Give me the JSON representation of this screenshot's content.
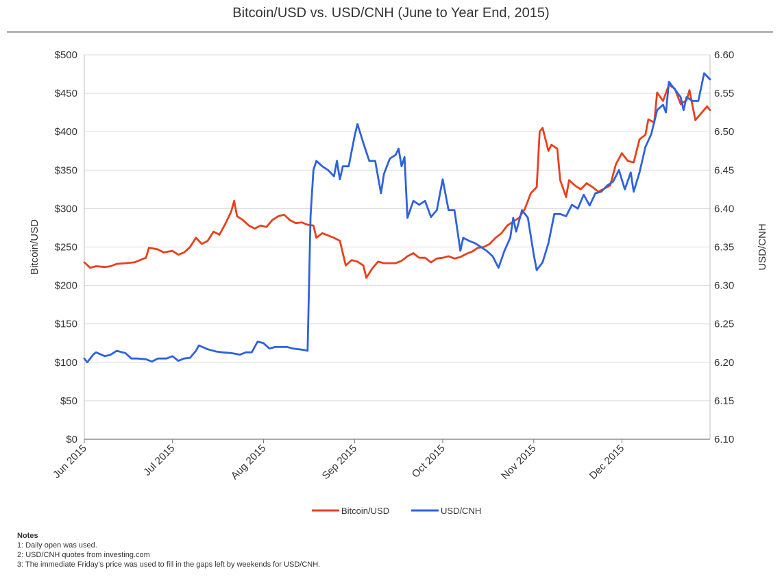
{
  "chart_data": {
    "type": "line",
    "title": "Bitcoin/USD vs. USD/CNH (June to Year End, 2015)",
    "ylabel_left": "Bitcoin/USD",
    "ylabel_right": "USD/CNH",
    "x_start": "2015-06-01",
    "x_end": "2015-12-31",
    "xticks": [
      {
        "date": "2015-06-01",
        "label": "Jun 2015"
      },
      {
        "date": "2015-07-01",
        "label": "Jul 2015"
      },
      {
        "date": "2015-08-01",
        "label": "Aug 2015"
      },
      {
        "date": "2015-09-01",
        "label": "Sep 2015"
      },
      {
        "date": "2015-10-01",
        "label": "Oct 2015"
      },
      {
        "date": "2015-11-01",
        "label": "Nov 2015"
      },
      {
        "date": "2015-12-01",
        "label": "Dec 2015"
      }
    ],
    "ylim_left": [
      0,
      500
    ],
    "yticks_left": [
      {
        "value": 0,
        "label": "$0"
      },
      {
        "value": 50,
        "label": "$50"
      },
      {
        "value": 100,
        "label": "$100"
      },
      {
        "value": 150,
        "label": "$150"
      },
      {
        "value": 200,
        "label": "$200"
      },
      {
        "value": 250,
        "label": "$250"
      },
      {
        "value": 300,
        "label": "$300"
      },
      {
        "value": 350,
        "label": "$350"
      },
      {
        "value": 400,
        "label": "$400"
      },
      {
        "value": 450,
        "label": "$450"
      },
      {
        "value": 500,
        "label": "$500"
      }
    ],
    "ylim_right": [
      6.1,
      6.6
    ],
    "yticks_right": [
      {
        "value": 6.1,
        "label": "6.10"
      },
      {
        "value": 6.15,
        "label": "6.15"
      },
      {
        "value": 6.2,
        "label": "6.20"
      },
      {
        "value": 6.25,
        "label": "6.25"
      },
      {
        "value": 6.3,
        "label": "6.30"
      },
      {
        "value": 6.35,
        "label": "6.35"
      },
      {
        "value": 6.4,
        "label": "6.40"
      },
      {
        "value": 6.45,
        "label": "6.45"
      },
      {
        "value": 6.5,
        "label": "6.50"
      },
      {
        "value": 6.55,
        "label": "6.55"
      },
      {
        "value": 6.6,
        "label": "6.60"
      }
    ],
    "grid": true,
    "legend_position": "bottom-center",
    "series": [
      {
        "name": "Bitcoin/USD",
        "axis": "left",
        "color": "#e8401c",
        "points": [
          [
            "2015-06-01",
            230
          ],
          [
            "2015-06-03",
            223
          ],
          [
            "2015-06-05",
            225
          ],
          [
            "2015-06-08",
            224
          ],
          [
            "2015-06-10",
            225
          ],
          [
            "2015-06-12",
            228
          ],
          [
            "2015-06-15",
            229
          ],
          [
            "2015-06-18",
            230
          ],
          [
            "2015-06-20",
            233
          ],
          [
            "2015-06-22",
            236
          ],
          [
            "2015-06-23",
            249
          ],
          [
            "2015-06-26",
            247
          ],
          [
            "2015-06-28",
            243
          ],
          [
            "2015-07-01",
            245
          ],
          [
            "2015-07-03",
            240
          ],
          [
            "2015-07-05",
            243
          ],
          [
            "2015-07-07",
            250
          ],
          [
            "2015-07-09",
            262
          ],
          [
            "2015-07-11",
            254
          ],
          [
            "2015-07-13",
            258
          ],
          [
            "2015-07-15",
            270
          ],
          [
            "2015-07-17",
            266
          ],
          [
            "2015-07-19",
            280
          ],
          [
            "2015-07-21",
            296
          ],
          [
            "2015-07-22",
            310
          ],
          [
            "2015-07-23",
            290
          ],
          [
            "2015-07-25",
            285
          ],
          [
            "2015-07-27",
            278
          ],
          [
            "2015-07-29",
            274
          ],
          [
            "2015-07-31",
            278
          ],
          [
            "2015-08-02",
            276
          ],
          [
            "2015-08-04",
            285
          ],
          [
            "2015-08-06",
            290
          ],
          [
            "2015-08-08",
            292
          ],
          [
            "2015-08-10",
            285
          ],
          [
            "2015-08-12",
            281
          ],
          [
            "2015-08-14",
            282
          ],
          [
            "2015-08-16",
            279
          ],
          [
            "2015-08-18",
            278
          ],
          [
            "2015-08-19",
            262
          ],
          [
            "2015-08-21",
            268
          ],
          [
            "2015-08-23",
            265
          ],
          [
            "2015-08-25",
            262
          ],
          [
            "2015-08-27",
            258
          ],
          [
            "2015-08-29",
            226
          ],
          [
            "2015-08-31",
            233
          ],
          [
            "2015-09-02",
            231
          ],
          [
            "2015-09-04",
            226
          ],
          [
            "2015-09-05",
            210
          ],
          [
            "2015-09-07",
            222
          ],
          [
            "2015-09-09",
            231
          ],
          [
            "2015-09-11",
            229
          ],
          [
            "2015-09-13",
            229
          ],
          [
            "2015-09-15",
            229
          ],
          [
            "2015-09-17",
            232
          ],
          [
            "2015-09-19",
            238
          ],
          [
            "2015-09-21",
            242
          ],
          [
            "2015-09-23",
            236
          ],
          [
            "2015-09-25",
            236
          ],
          [
            "2015-09-27",
            230
          ],
          [
            "2015-09-29",
            235
          ],
          [
            "2015-10-01",
            236
          ],
          [
            "2015-10-03",
            238
          ],
          [
            "2015-10-05",
            235
          ],
          [
            "2015-10-07",
            237
          ],
          [
            "2015-10-09",
            241
          ],
          [
            "2015-10-11",
            244
          ],
          [
            "2015-10-13",
            249
          ],
          [
            "2015-10-15",
            250
          ],
          [
            "2015-10-17",
            254
          ],
          [
            "2015-10-19",
            262
          ],
          [
            "2015-10-21",
            268
          ],
          [
            "2015-10-23",
            278
          ],
          [
            "2015-10-25",
            283
          ],
          [
            "2015-10-27",
            288
          ],
          [
            "2015-10-29",
            300
          ],
          [
            "2015-10-31",
            320
          ],
          [
            "2015-11-02",
            328
          ],
          [
            "2015-11-03",
            400
          ],
          [
            "2015-11-04",
            405
          ],
          [
            "2015-11-06",
            375
          ],
          [
            "2015-11-07",
            383
          ],
          [
            "2015-11-09",
            378
          ],
          [
            "2015-11-10",
            337
          ],
          [
            "2015-11-12",
            315
          ],
          [
            "2015-11-13",
            337
          ],
          [
            "2015-11-15",
            330
          ],
          [
            "2015-11-17",
            325
          ],
          [
            "2015-11-19",
            333
          ],
          [
            "2015-11-21",
            328
          ],
          [
            "2015-11-23",
            322
          ],
          [
            "2015-11-25",
            326
          ],
          [
            "2015-11-27",
            330
          ],
          [
            "2015-11-29",
            358
          ],
          [
            "2015-12-01",
            372
          ],
          [
            "2015-12-03",
            362
          ],
          [
            "2015-12-05",
            360
          ],
          [
            "2015-12-07",
            390
          ],
          [
            "2015-12-09",
            396
          ],
          [
            "2015-12-10",
            416
          ],
          [
            "2015-12-12",
            412
          ],
          [
            "2015-12-13",
            451
          ],
          [
            "2015-12-15",
            440
          ],
          [
            "2015-12-17",
            461
          ],
          [
            "2015-12-19",
            456
          ],
          [
            "2015-12-21",
            436
          ],
          [
            "2015-12-23",
            441
          ],
          [
            "2015-12-24",
            454
          ],
          [
            "2015-12-26",
            415
          ],
          [
            "2015-12-28",
            424
          ],
          [
            "2015-12-30",
            433
          ],
          [
            "2015-12-31",
            428
          ]
        ]
      },
      {
        "name": "USD/CNH",
        "axis": "right",
        "color": "#2e62de",
        "points": [
          [
            "2015-06-01",
            6.205
          ],
          [
            "2015-06-02",
            6.2
          ],
          [
            "2015-06-04",
            6.21
          ],
          [
            "2015-06-05",
            6.213
          ],
          [
            "2015-06-08",
            6.208
          ],
          [
            "2015-06-10",
            6.21
          ],
          [
            "2015-06-12",
            6.215
          ],
          [
            "2015-06-15",
            6.212
          ],
          [
            "2015-06-17",
            6.205
          ],
          [
            "2015-06-19",
            6.205
          ],
          [
            "2015-06-22",
            6.204
          ],
          [
            "2015-06-24",
            6.201
          ],
          [
            "2015-06-26",
            6.205
          ],
          [
            "2015-06-29",
            6.205
          ],
          [
            "2015-07-01",
            6.208
          ],
          [
            "2015-07-03",
            6.202
          ],
          [
            "2015-07-05",
            6.205
          ],
          [
            "2015-07-07",
            6.206
          ],
          [
            "2015-07-09",
            6.215
          ],
          [
            "2015-07-10",
            6.222
          ],
          [
            "2015-07-13",
            6.217
          ],
          [
            "2015-07-16",
            6.214
          ],
          [
            "2015-07-18",
            6.213
          ],
          [
            "2015-07-21",
            6.212
          ],
          [
            "2015-07-24",
            6.21
          ],
          [
            "2015-07-26",
            6.213
          ],
          [
            "2015-07-28",
            6.213
          ],
          [
            "2015-07-30",
            6.227
          ],
          [
            "2015-08-01",
            6.225
          ],
          [
            "2015-08-03",
            6.218
          ],
          [
            "2015-08-05",
            6.22
          ],
          [
            "2015-08-07",
            6.22
          ],
          [
            "2015-08-09",
            6.22
          ],
          [
            "2015-08-11",
            6.218
          ],
          [
            "2015-08-13",
            6.217
          ],
          [
            "2015-08-15",
            6.216
          ],
          [
            "2015-08-16",
            6.215
          ],
          [
            "2015-08-17",
            6.39
          ],
          [
            "2015-08-18",
            6.45
          ],
          [
            "2015-08-19",
            6.462
          ],
          [
            "2015-08-21",
            6.455
          ],
          [
            "2015-08-23",
            6.45
          ],
          [
            "2015-08-25",
            6.442
          ],
          [
            "2015-08-26",
            6.462
          ],
          [
            "2015-08-27",
            6.438
          ],
          [
            "2015-08-28",
            6.455
          ],
          [
            "2015-08-30",
            6.455
          ],
          [
            "2015-09-01",
            6.494
          ],
          [
            "2015-09-02",
            6.51
          ],
          [
            "2015-09-04",
            6.485
          ],
          [
            "2015-09-06",
            6.462
          ],
          [
            "2015-09-08",
            6.462
          ],
          [
            "2015-09-10",
            6.42
          ],
          [
            "2015-09-11",
            6.445
          ],
          [
            "2015-09-13",
            6.465
          ],
          [
            "2015-09-15",
            6.47
          ],
          [
            "2015-09-16",
            6.478
          ],
          [
            "2015-09-17",
            6.455
          ],
          [
            "2015-09-18",
            6.467
          ],
          [
            "2015-09-19",
            6.388
          ],
          [
            "2015-09-21",
            6.41
          ],
          [
            "2015-09-23",
            6.405
          ],
          [
            "2015-09-25",
            6.41
          ],
          [
            "2015-09-27",
            6.389
          ],
          [
            "2015-09-29",
            6.398
          ],
          [
            "2015-10-01",
            6.438
          ],
          [
            "2015-10-03",
            6.398
          ],
          [
            "2015-10-05",
            6.398
          ],
          [
            "2015-10-07",
            6.345
          ],
          [
            "2015-10-08",
            6.362
          ],
          [
            "2015-10-10",
            6.358
          ],
          [
            "2015-10-12",
            6.355
          ],
          [
            "2015-10-14",
            6.35
          ],
          [
            "2015-10-16",
            6.345
          ],
          [
            "2015-10-18",
            6.338
          ],
          [
            "2015-10-20",
            6.323
          ],
          [
            "2015-10-22",
            6.345
          ],
          [
            "2015-10-24",
            6.362
          ],
          [
            "2015-10-25",
            6.388
          ],
          [
            "2015-10-26",
            6.37
          ],
          [
            "2015-10-28",
            6.398
          ],
          [
            "2015-10-30",
            6.388
          ],
          [
            "2015-11-01",
            6.34
          ],
          [
            "2015-11-02",
            6.32
          ],
          [
            "2015-11-04",
            6.33
          ],
          [
            "2015-11-06",
            6.355
          ],
          [
            "2015-11-08",
            6.393
          ],
          [
            "2015-11-10",
            6.393
          ],
          [
            "2015-11-12",
            6.39
          ],
          [
            "2015-11-14",
            6.405
          ],
          [
            "2015-11-16",
            6.4
          ],
          [
            "2015-11-18",
            6.418
          ],
          [
            "2015-11-20",
            6.404
          ],
          [
            "2015-11-22",
            6.42
          ],
          [
            "2015-11-24",
            6.422
          ],
          [
            "2015-11-26",
            6.43
          ],
          [
            "2015-11-28",
            6.435
          ],
          [
            "2015-11-30",
            6.45
          ],
          [
            "2015-12-02",
            6.425
          ],
          [
            "2015-12-04",
            6.447
          ],
          [
            "2015-12-05",
            6.422
          ],
          [
            "2015-12-07",
            6.447
          ],
          [
            "2015-12-09",
            6.48
          ],
          [
            "2015-12-11",
            6.497
          ],
          [
            "2015-12-13",
            6.528
          ],
          [
            "2015-12-15",
            6.535
          ],
          [
            "2015-12-16",
            6.525
          ],
          [
            "2015-12-17",
            6.565
          ],
          [
            "2015-12-19",
            6.555
          ],
          [
            "2015-12-21",
            6.545
          ],
          [
            "2015-12-22",
            6.528
          ],
          [
            "2015-12-23",
            6.545
          ],
          [
            "2015-12-25",
            6.54
          ],
          [
            "2015-12-27",
            6.54
          ],
          [
            "2015-12-29",
            6.576
          ],
          [
            "2015-12-31",
            6.568
          ]
        ]
      }
    ]
  },
  "notes": {
    "heading": "Notes",
    "lines": [
      "1: Daily open was used.",
      "2: USD/CNH quotes from investing.com",
      "3: The immediate Friday’s price was used to fill in the gaps left by weekends for USD/CNH."
    ]
  }
}
